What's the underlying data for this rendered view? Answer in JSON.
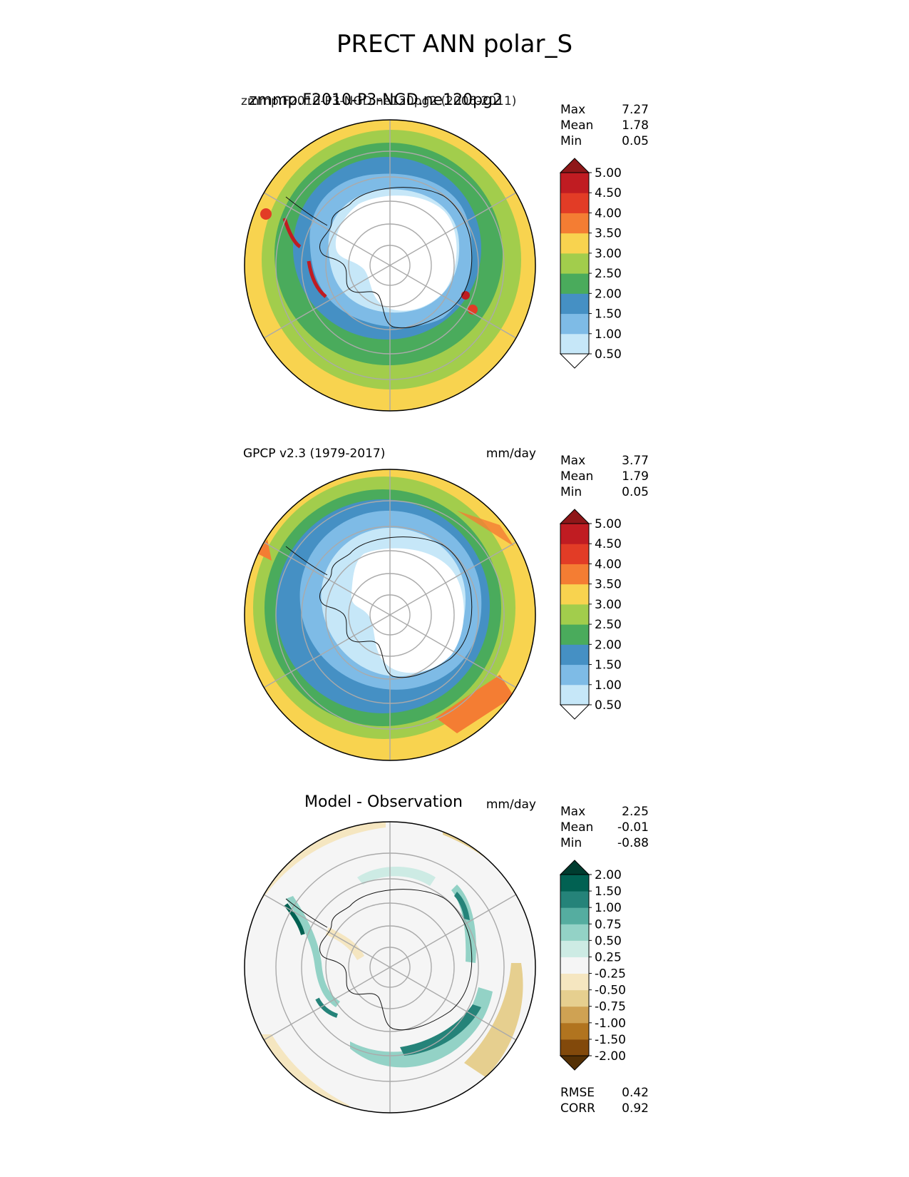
{
  "figure": {
    "title": "PRECT ANN polar_S"
  },
  "panels": [
    {
      "id": "test",
      "title_left": "zmmp.F2010-P3-NGD.ne120pg2 (2006-2011)",
      "title_center": "zmmp.F2010-P3-NGD.ne120pg2",
      "units": "mm/day",
      "stats": [
        {
          "label": "Max",
          "value": "7.27"
        },
        {
          "label": "Mean",
          "value": "1.78"
        },
        {
          "label": "Min",
          "value": "0.05"
        }
      ],
      "colorbar": {
        "ticks": [
          "0.50",
          "1.00",
          "1.50",
          "2.00",
          "2.50",
          "3.00",
          "3.50",
          "4.00",
          "4.50",
          "5.00"
        ],
        "colors": [
          "#ffffff",
          "#c6e7f8",
          "#7ebbe6",
          "#4590c4",
          "#4aab5c",
          "#a2cd4c",
          "#f8d34f",
          "#f47d33",
          "#e23c26",
          "#c01c22",
          "#8f1719"
        ]
      }
    },
    {
      "id": "reference",
      "title_left": "GPCP v2.3 (1979-2017)",
      "units": "mm/day",
      "stats": [
        {
          "label": "Max",
          "value": "3.77"
        },
        {
          "label": "Mean",
          "value": "1.79"
        },
        {
          "label": "Min",
          "value": "0.05"
        }
      ],
      "colorbar": {
        "ticks": [
          "0.50",
          "1.00",
          "1.50",
          "2.00",
          "2.50",
          "3.00",
          "3.50",
          "4.00",
          "4.50",
          "5.00"
        ],
        "colors": [
          "#ffffff",
          "#c6e7f8",
          "#7ebbe6",
          "#4590c4",
          "#4aab5c",
          "#a2cd4c",
          "#f8d34f",
          "#f47d33",
          "#e23c26",
          "#c01c22",
          "#8f1719"
        ]
      }
    },
    {
      "id": "diff",
      "title_center": "Model - Observation",
      "units": "mm/day",
      "stats": [
        {
          "label": "Max",
          "value": "2.25"
        },
        {
          "label": "Mean",
          "value": "-0.01"
        },
        {
          "label": "Min",
          "value": "-0.88"
        }
      ],
      "metrics": [
        {
          "label": "RMSE",
          "value": "0.42"
        },
        {
          "label": "CORR",
          "value": "0.92"
        }
      ],
      "colorbar": {
        "ticks": [
          "-2.00",
          "-1.50",
          "-1.00",
          "-0.75",
          "-0.50",
          "-0.25",
          "0.25",
          "0.50",
          "0.75",
          "1.00",
          "1.50",
          "2.00"
        ],
        "colors": [
          "#543005",
          "#82490b",
          "#b1741f",
          "#cfa253",
          "#e6cf8f",
          "#f5e6c0",
          "#f5f5f5",
          "#cdebe4",
          "#93d2c6",
          "#55ada0",
          "#258379",
          "#016152",
          "#003c2f"
        ]
      }
    }
  ],
  "chart_data": [
    {
      "type": "heatmap",
      "title": "zmmp.F2010-P3-NGD.ne120pg2",
      "subtitle": "zmmp.F2010-P3-NGD.ne120pg2 (2006-2011)",
      "projection": "south polar stereographic",
      "units": "mm/day",
      "levels": [
        0.5,
        1.0,
        1.5,
        2.0,
        2.5,
        3.0,
        3.5,
        4.0,
        4.5,
        5.0
      ],
      "stats": {
        "max": 7.27,
        "mean": 1.78,
        "min": 0.05
      },
      "grid": true
    },
    {
      "type": "heatmap",
      "title": "GPCP v2.3 (1979-2017)",
      "projection": "south polar stereographic",
      "units": "mm/day",
      "levels": [
        0.5,
        1.0,
        1.5,
        2.0,
        2.5,
        3.0,
        3.5,
        4.0,
        4.5,
        5.0
      ],
      "stats": {
        "max": 3.77,
        "mean": 1.79,
        "min": 0.05
      },
      "grid": true
    },
    {
      "type": "heatmap",
      "title": "Model - Observation",
      "projection": "south polar stereographic",
      "units": "mm/day",
      "levels": [
        -2.0,
        -1.5,
        -1.0,
        -0.75,
        -0.5,
        -0.25,
        0.25,
        0.5,
        0.75,
        1.0,
        1.5,
        2.0
      ],
      "stats": {
        "max": 2.25,
        "mean": -0.01,
        "min": -0.88,
        "rmse": 0.42,
        "corr": 0.92
      },
      "grid": true
    }
  ]
}
